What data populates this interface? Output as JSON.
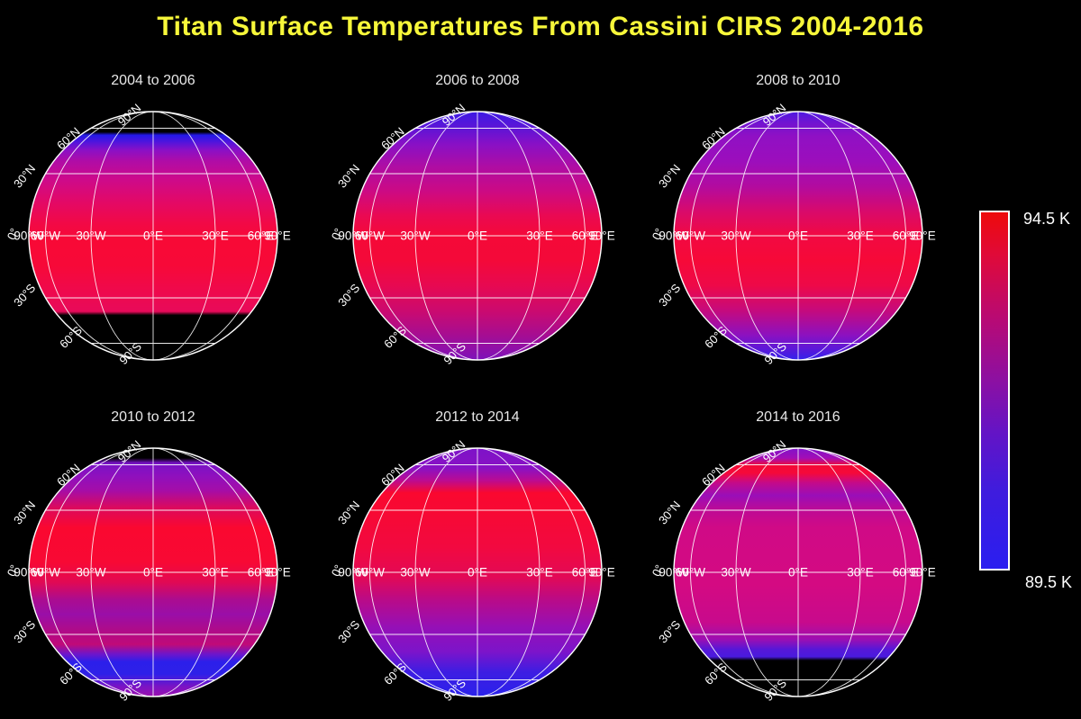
{
  "page_title": "Titan Surface Temperatures From Cassini CIRS 2004-2016",
  "colors": {
    "background": "#000000",
    "title": "#f7f73a",
    "graticule": "#ffffff",
    "label_text": "#ffffff",
    "subtitle_text": "#e8e8e8"
  },
  "graticule": {
    "lat_labels": [
      "90°N",
      "60°N",
      "30°N",
      "0°",
      "30°S",
      "60°S",
      "90°S"
    ],
    "lon_labels": [
      "90°W",
      "60°W",
      "30°W",
      "0°E",
      "30°E",
      "60°E",
      "90°E"
    ]
  },
  "colorbar": {
    "max_label": "94.5 K",
    "min_label": "89.5 K",
    "stops": [
      [
        0,
        "#ee0a0a"
      ],
      [
        12,
        "#e00a38"
      ],
      [
        30,
        "#b80a74"
      ],
      [
        48,
        "#8a10a4"
      ],
      [
        62,
        "#6314c6"
      ],
      [
        78,
        "#3f1cdd"
      ],
      [
        100,
        "#2a1ef0"
      ]
    ]
  },
  "globes": [
    {
      "title": "2004 to 2006",
      "gradient": [
        [
          0,
          "#000000"
        ],
        [
          8.2,
          "#000000"
        ],
        [
          9.5,
          "#2318e8"
        ],
        [
          12,
          "#4c15de"
        ],
        [
          15.5,
          "#8a10c6"
        ],
        [
          20,
          "#b00ca6"
        ],
        [
          27,
          "#cc0a8c"
        ],
        [
          36,
          "#e20968"
        ],
        [
          45,
          "#f20946"
        ],
        [
          52,
          "#f80936"
        ],
        [
          62,
          "#f70938"
        ],
        [
          72,
          "#ef094c"
        ],
        [
          80.5,
          "#e80a5a"
        ],
        [
          82,
          "#000000"
        ],
        [
          100,
          "#000000"
        ]
      ]
    },
    {
      "title": "2006 to 2008",
      "gradient": [
        [
          0,
          "#3c1ae4"
        ],
        [
          6,
          "#5a15d8"
        ],
        [
          13,
          "#8810c6"
        ],
        [
          22,
          "#ae0da4"
        ],
        [
          32,
          "#cc0a84"
        ],
        [
          42,
          "#ea0952"
        ],
        [
          50,
          "#f50938"
        ],
        [
          60,
          "#f40939"
        ],
        [
          70,
          "#e70951"
        ],
        [
          80,
          "#cc0a6e"
        ],
        [
          90,
          "#a60d92"
        ],
        [
          100,
          "#7d12ba"
        ]
      ]
    },
    {
      "title": "2008 to 2010",
      "gradient": [
        [
          0,
          "#4c19e2"
        ],
        [
          4,
          "#6e14d2"
        ],
        [
          10,
          "#9010c4"
        ],
        [
          20,
          "#9c0ebc"
        ],
        [
          30,
          "#b20ba0"
        ],
        [
          40,
          "#d80a6c"
        ],
        [
          50,
          "#f20942"
        ],
        [
          60,
          "#f60938"
        ],
        [
          70,
          "#ee0948"
        ],
        [
          80,
          "#c60a7c"
        ],
        [
          90,
          "#8c11c0"
        ],
        [
          96,
          "#5718da"
        ],
        [
          100,
          "#3322ec"
        ]
      ]
    },
    {
      "title": "2010 to 2012",
      "gradient": [
        [
          0,
          "#000000"
        ],
        [
          4,
          "#000000"
        ],
        [
          6,
          "#7713c6"
        ],
        [
          11,
          "#8e10be"
        ],
        [
          17,
          "#a50da8"
        ],
        [
          24,
          "#dc095c"
        ],
        [
          32,
          "#fa0830"
        ],
        [
          46,
          "#f80934"
        ],
        [
          54,
          "#e10954"
        ],
        [
          61,
          "#ab0c90"
        ],
        [
          67,
          "#9a0ea8"
        ],
        [
          73,
          "#ae0b8a"
        ],
        [
          79,
          "#c00a78"
        ],
        [
          83,
          "#6c15cc"
        ],
        [
          86,
          "#2c1fea"
        ],
        [
          91,
          "#2e20e8"
        ],
        [
          96,
          "#7a13c4"
        ],
        [
          100,
          "#9c0fae"
        ]
      ]
    },
    {
      "title": "2012 to 2014",
      "gradient": [
        [
          0,
          "#7d12c8"
        ],
        [
          8,
          "#8911c4"
        ],
        [
          13,
          "#bb0b92"
        ],
        [
          18,
          "#fa082f"
        ],
        [
          26,
          "#f70934"
        ],
        [
          40,
          "#f20940"
        ],
        [
          52,
          "#e20956"
        ],
        [
          62,
          "#b60b8c"
        ],
        [
          72,
          "#9610b6"
        ],
        [
          82,
          "#7c14ca"
        ],
        [
          90,
          "#3e1de2"
        ],
        [
          100,
          "#2a22ec"
        ]
      ]
    },
    {
      "title": "2014 to 2016",
      "gradient": [
        [
          0,
          "#8012ca"
        ],
        [
          4,
          "#a30db6"
        ],
        [
          7,
          "#f40934"
        ],
        [
          10,
          "#f5093a"
        ],
        [
          14,
          "#c40a8a"
        ],
        [
          19,
          "#9a0eb8"
        ],
        [
          25,
          "#be0a94"
        ],
        [
          32,
          "#d00a86"
        ],
        [
          55,
          "#d40a82"
        ],
        [
          70,
          "#c80a8c"
        ],
        [
          77,
          "#9c0fb2"
        ],
        [
          81,
          "#5617d8"
        ],
        [
          84,
          "#4a1ade"
        ],
        [
          85.5,
          "#000000"
        ],
        [
          100,
          "#000000"
        ]
      ]
    }
  ],
  "chart_data": {
    "type": "heatmap",
    "title": "Titan Surface Temperatures From Cassini CIRS 2004-2016",
    "projection": "orthographic globes, equatorial view, graticule every 30 degrees",
    "value_units": "K",
    "value_range": [
      89.5,
      94.5
    ],
    "colormap": "blue (89.5 K) through violet/purple/magenta to red (94.5 K); black = no data",
    "legend_position": "right colorbar",
    "panels": [
      {
        "period": "2004 to 2006",
        "no_data": "poleward of ~62N and ~52S",
        "latitude_profile": [
          {
            "lat_deg": 60,
            "temp_K": 90.1
          },
          {
            "lat_deg": 50,
            "temp_K": 91.7
          },
          {
            "lat_deg": 40,
            "temp_K": 92.6
          },
          {
            "lat_deg": 30,
            "temp_K": 93.1
          },
          {
            "lat_deg": 15,
            "temp_K": 93.8
          },
          {
            "lat_deg": 0,
            "temp_K": 94.3
          },
          {
            "lat_deg": -15,
            "temp_K": 94.2
          },
          {
            "lat_deg": -30,
            "temp_K": 93.9
          },
          {
            "lat_deg": -45,
            "temp_K": 93.6
          },
          {
            "lat_deg": -52,
            "temp_K": 93.4
          }
        ]
      },
      {
        "period": "2006 to 2008",
        "no_data": "none",
        "latitude_profile": [
          {
            "lat_deg": 90,
            "temp_K": 90.3
          },
          {
            "lat_deg": 75,
            "temp_K": 90.9
          },
          {
            "lat_deg": 60,
            "temp_K": 91.8
          },
          {
            "lat_deg": 45,
            "temp_K": 92.7
          },
          {
            "lat_deg": 30,
            "temp_K": 93.4
          },
          {
            "lat_deg": 15,
            "temp_K": 94.0
          },
          {
            "lat_deg": 0,
            "temp_K": 94.3
          },
          {
            "lat_deg": -15,
            "temp_K": 94.1
          },
          {
            "lat_deg": -30,
            "temp_K": 93.7
          },
          {
            "lat_deg": -45,
            "temp_K": 93.1
          },
          {
            "lat_deg": -60,
            "temp_K": 92.5
          },
          {
            "lat_deg": -75,
            "temp_K": 92.0
          },
          {
            "lat_deg": -90,
            "temp_K": 91.5
          }
        ]
      },
      {
        "period": "2008 to 2010",
        "no_data": "none",
        "latitude_profile": [
          {
            "lat_deg": 90,
            "temp_K": 90.4
          },
          {
            "lat_deg": 75,
            "temp_K": 91.2
          },
          {
            "lat_deg": 60,
            "temp_K": 91.7
          },
          {
            "lat_deg": 45,
            "temp_K": 92.2
          },
          {
            "lat_deg": 30,
            "temp_K": 93.0
          },
          {
            "lat_deg": 15,
            "temp_K": 93.9
          },
          {
            "lat_deg": 0,
            "temp_K": 94.2
          },
          {
            "lat_deg": -15,
            "temp_K": 94.2
          },
          {
            "lat_deg": -30,
            "temp_K": 93.8
          },
          {
            "lat_deg": -45,
            "temp_K": 93.0
          },
          {
            "lat_deg": -60,
            "temp_K": 92.1
          },
          {
            "lat_deg": -75,
            "temp_K": 91.2
          },
          {
            "lat_deg": -90,
            "temp_K": 90.2
          }
        ]
      },
      {
        "period": "2010 to 2012",
        "no_data": "small cap poleward of ~82N",
        "latitude_profile": [
          {
            "lat_deg": 75,
            "temp_K": 91.8
          },
          {
            "lat_deg": 60,
            "temp_K": 92.4
          },
          {
            "lat_deg": 45,
            "temp_K": 93.9
          },
          {
            "lat_deg": 30,
            "temp_K": 94.4
          },
          {
            "lat_deg": 15,
            "temp_K": 94.4
          },
          {
            "lat_deg": 0,
            "temp_K": 94.2
          },
          {
            "lat_deg": -15,
            "temp_K": 93.1
          },
          {
            "lat_deg": -25,
            "temp_K": 92.3
          },
          {
            "lat_deg": -38,
            "temp_K": 92.6
          },
          {
            "lat_deg": -48,
            "temp_K": 92.9
          },
          {
            "lat_deg": -60,
            "temp_K": 89.9
          },
          {
            "lat_deg": -75,
            "temp_K": 91.2
          },
          {
            "lat_deg": -90,
            "temp_K": 91.9
          }
        ]
      },
      {
        "period": "2012 to 2014",
        "no_data": "none",
        "latitude_profile": [
          {
            "lat_deg": 90,
            "temp_K": 91.4
          },
          {
            "lat_deg": 75,
            "temp_K": 91.7
          },
          {
            "lat_deg": 60,
            "temp_K": 92.2
          },
          {
            "lat_deg": 45,
            "temp_K": 93.9
          },
          {
            "lat_deg": 38,
            "temp_K": 94.4
          },
          {
            "lat_deg": 25,
            "temp_K": 94.2
          },
          {
            "lat_deg": 10,
            "temp_K": 94.0
          },
          {
            "lat_deg": 0,
            "temp_K": 93.8
          },
          {
            "lat_deg": -15,
            "temp_K": 93.1
          },
          {
            "lat_deg": -30,
            "temp_K": 92.5
          },
          {
            "lat_deg": -45,
            "temp_K": 92.1
          },
          {
            "lat_deg": -60,
            "temp_K": 91.7
          },
          {
            "lat_deg": -75,
            "temp_K": 90.2
          },
          {
            "lat_deg": -90,
            "temp_K": 89.8
          }
        ]
      },
      {
        "period": "2014 to 2016",
        "no_data": "poleward of ~50S",
        "latitude_profile": [
          {
            "lat_deg": 90,
            "temp_K": 91.7
          },
          {
            "lat_deg": 80,
            "temp_K": 92.3
          },
          {
            "lat_deg": 68,
            "temp_K": 94.3
          },
          {
            "lat_deg": 58,
            "temp_K": 92.9
          },
          {
            "lat_deg": 50,
            "temp_K": 92.0
          },
          {
            "lat_deg": 40,
            "temp_K": 92.5
          },
          {
            "lat_deg": 25,
            "temp_K": 92.9
          },
          {
            "lat_deg": 0,
            "temp_K": 92.9
          },
          {
            "lat_deg": -20,
            "temp_K": 92.9
          },
          {
            "lat_deg": -35,
            "temp_K": 92.4
          },
          {
            "lat_deg": -44,
            "temp_K": 91.0
          },
          {
            "lat_deg": -50,
            "temp_K": 90.4
          }
        ]
      }
    ]
  }
}
